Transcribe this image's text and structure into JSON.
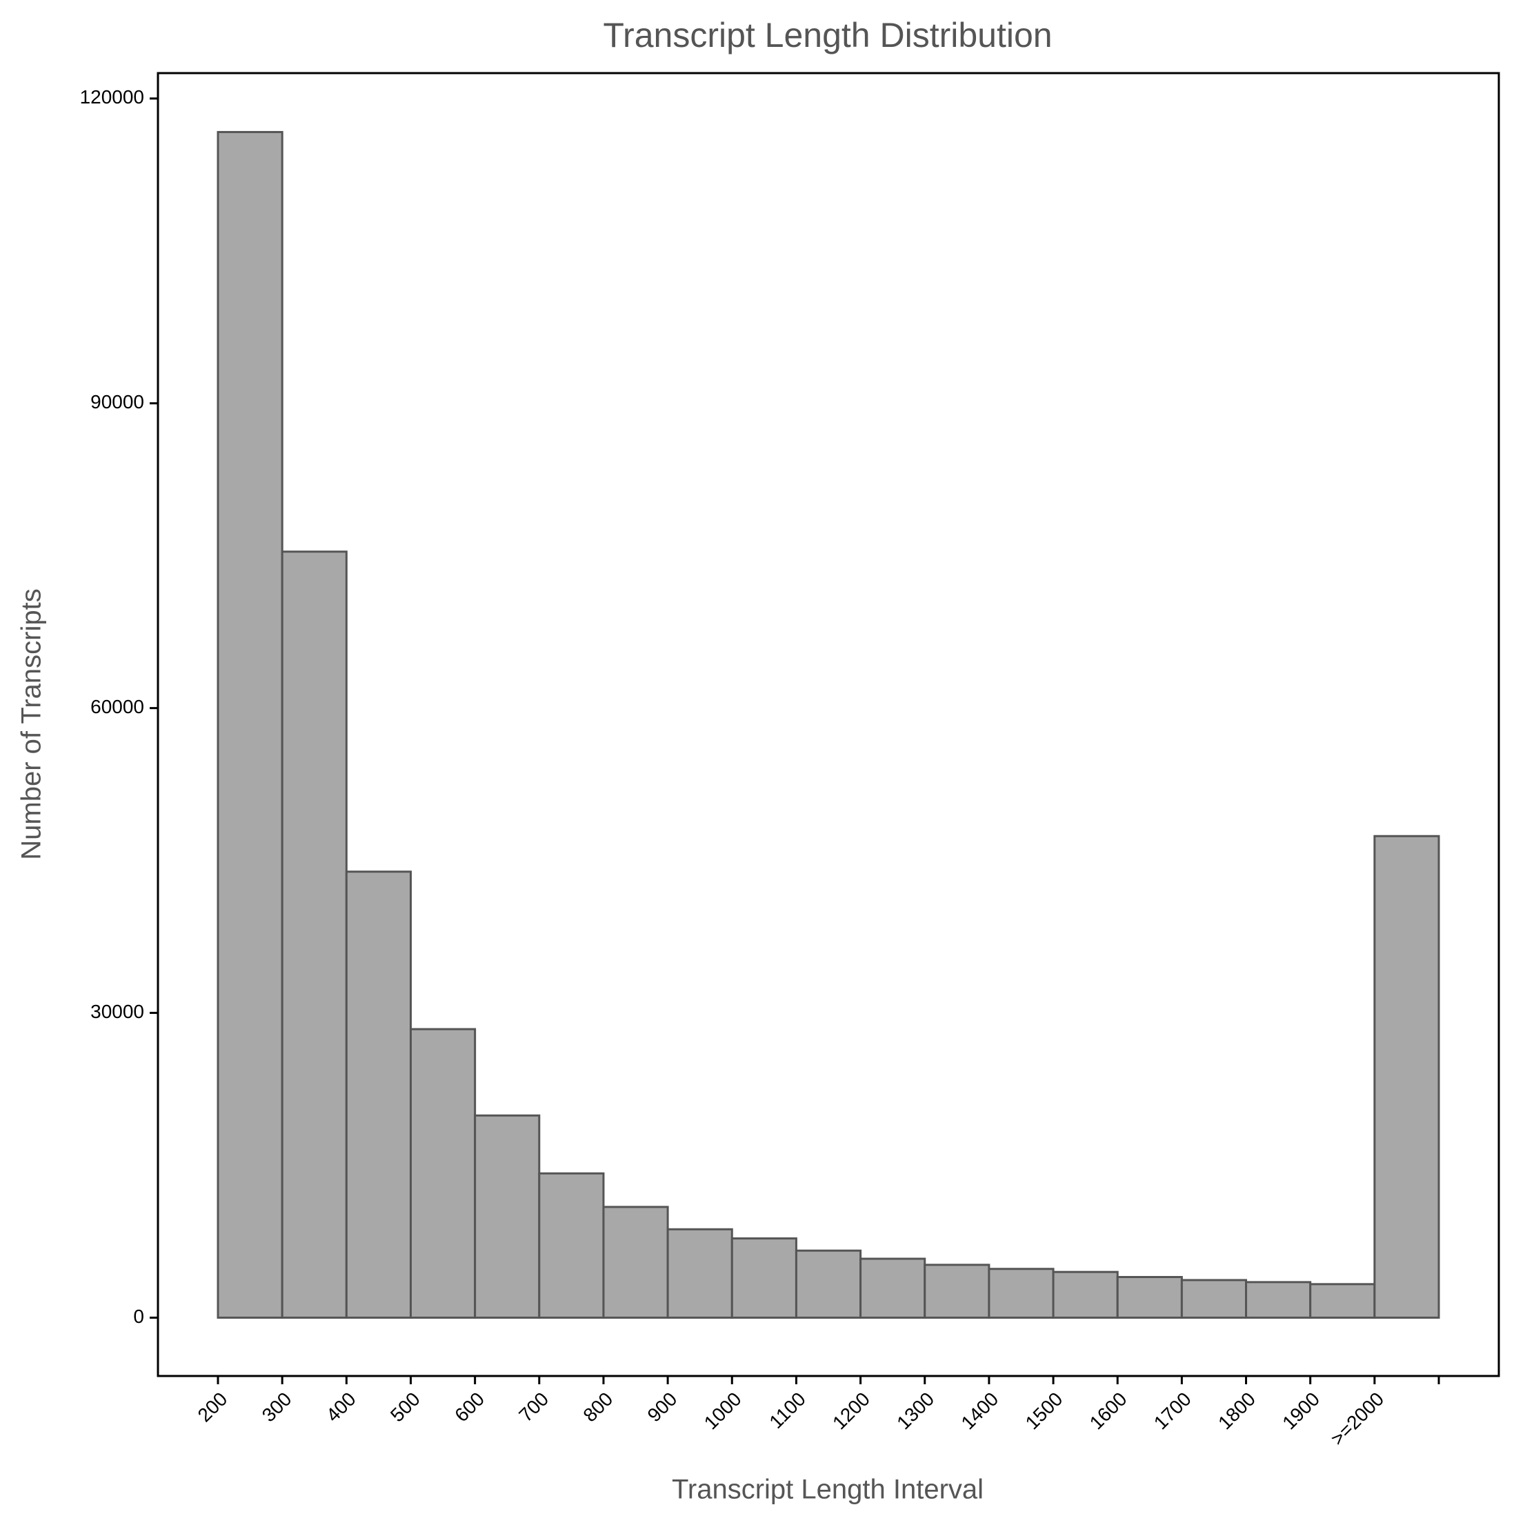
{
  "chart_data": {
    "type": "histogram",
    "title": "Transcript Length Distribution",
    "x_label": "Transcript Length Interval",
    "y_label": "Number of Transcripts",
    "bins": [
      200,
      300,
      400,
      500,
      600,
      700,
      800,
      900,
      1000,
      1100,
      1200,
      1300,
      1400,
      1500,
      1600,
      1700,
      1800,
      1900,
      {
        "value": 2000,
        "label": ">=2000"
      },
      null
    ],
    "values": [
      116700,
      75400,
      43900,
      28400,
      19900,
      14200,
      10900,
      8700,
      7800,
      6600,
      5800,
      5200,
      4800,
      4500,
      4000,
      3700,
      3500,
      3300,
      47400
    ],
    "color": "#a8a8a8",
    "edge_color": "#555555",
    "ylim": [
      -5740,
      122500
    ],
    "yticks": [
      0,
      30000,
      60000,
      90000,
      120000
    ]
  }
}
